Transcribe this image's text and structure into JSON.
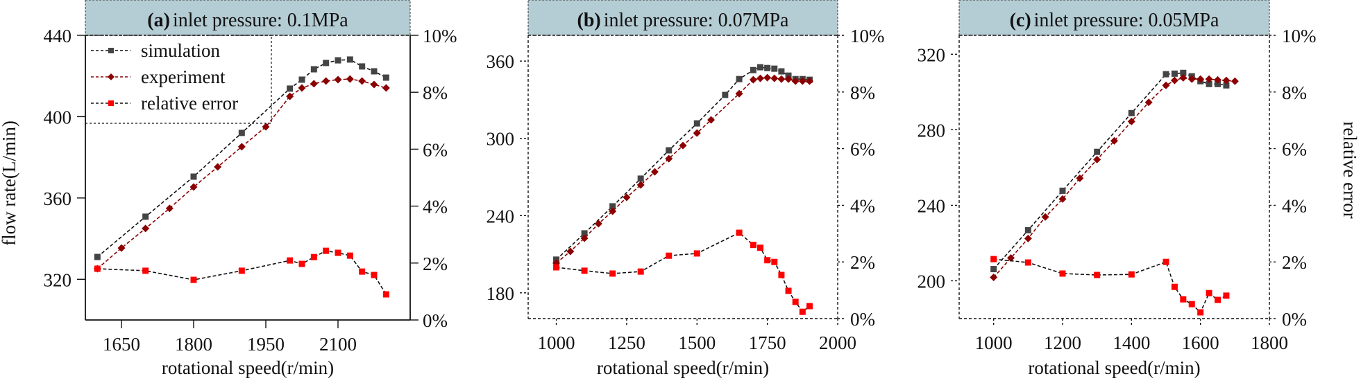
{
  "chart_data": [
    {
      "type": "line",
      "panel_label": "(a)",
      "title": "inlet pressure: 0.1MPa",
      "xlabel": "rotational speed(r/min)",
      "ylabel": "flow rate(L/min)",
      "y2label": "",
      "xlim": [
        1575,
        2250
      ],
      "ylim": [
        300,
        440
      ],
      "y2lim": [
        0,
        10
      ],
      "xticks": [
        1650,
        1800,
        1950,
        2100
      ],
      "yticks": [
        320,
        360,
        400,
        440
      ],
      "y2ticks": [
        "0%",
        "2%",
        "4%",
        "6%",
        "8%",
        "10%"
      ],
      "left_axis_style": "solid",
      "show_legend": true,
      "legend_position": "top-left",
      "series": [
        {
          "name": "simulation",
          "axis": "left",
          "marker": "square",
          "color": "#444444",
          "line_color": "#111111",
          "x": [
            1600,
            1700,
            1800,
            1900,
            2000,
            2025,
            2050,
            2075,
            2100,
            2125,
            2150,
            2175,
            2200
          ],
          "values": [
            331.0,
            350.8,
            370.5,
            392.0,
            413.8,
            418.2,
            423.3,
            426.4,
            427.7,
            428.1,
            424.7,
            422.3,
            419.2
          ]
        },
        {
          "name": "experiment",
          "axis": "left",
          "marker": "diamond",
          "color": "#8b0000",
          "line_color": "#8b0000",
          "x": [
            1600,
            1650,
            1700,
            1750,
            1800,
            1850,
            1900,
            1950,
            2000,
            2025,
            2050,
            2075,
            2100,
            2125,
            2150,
            2175,
            2200
          ],
          "values": [
            325.2,
            335.4,
            345.0,
            354.9,
            365.4,
            375.3,
            385.2,
            395.0,
            410.0,
            414.1,
            416.2,
            417.5,
            418.2,
            418.5,
            417.5,
            415.8,
            414.1
          ]
        },
        {
          "name": "relative error",
          "axis": "right",
          "marker": "square",
          "color": "#ff0000",
          "line_color": "#111111",
          "x": [
            1600,
            1700,
            1800,
            1900,
            2000,
            2025,
            2050,
            2075,
            2100,
            2125,
            2150,
            2175,
            2200
          ],
          "values": [
            1.8,
            1.73,
            1.41,
            1.73,
            2.09,
            1.97,
            2.21,
            2.43,
            2.36,
            2.26,
            1.7,
            1.58,
            0.9
          ]
        }
      ]
    },
    {
      "type": "line",
      "panel_label": "(b)",
      "title": "inlet pressure: 0.07MPa",
      "xlabel": "rotational speed(r/min)",
      "ylabel": "",
      "y2label": "",
      "xlim": [
        900,
        2000
      ],
      "ylim": [
        160,
        380
      ],
      "y2lim": [
        0,
        10
      ],
      "xticks": [
        1000,
        1250,
        1500,
        1750,
        2000
      ],
      "yticks": [
        180,
        240,
        300,
        360
      ],
      "y2ticks": [
        "0%",
        "2%",
        "4%",
        "6%",
        "8%",
        "10%"
      ],
      "left_axis_style": "dashed",
      "show_legend": false,
      "series": [
        {
          "name": "simulation",
          "axis": "left",
          "marker": "square",
          "color": "#444444",
          "line_color": "#111111",
          "x": [
            1000,
            1100,
            1200,
            1300,
            1400,
            1500,
            1600,
            1650,
            1700,
            1725,
            1750,
            1775,
            1800,
            1825,
            1850,
            1875,
            1900
          ],
          "values": [
            205.8,
            226.2,
            247.2,
            268.7,
            290.7,
            311.6,
            333.7,
            346.0,
            353.0,
            355.2,
            354.6,
            354.1,
            352.0,
            348.7,
            346.0,
            346.0,
            345.5
          ]
        },
        {
          "name": "experiment",
          "axis": "left",
          "marker": "diamond",
          "color": "#8b0000",
          "line_color": "#8b0000",
          "x": [
            1000,
            1050,
            1100,
            1150,
            1200,
            1250,
            1300,
            1350,
            1400,
            1450,
            1500,
            1550,
            1650,
            1700,
            1725,
            1750,
            1775,
            1800,
            1825,
            1850,
            1875,
            1900
          ],
          "values": [
            203.1,
            212.2,
            222.4,
            233.7,
            243.4,
            254.1,
            263.8,
            274.0,
            284.2,
            294.4,
            304.1,
            314.3,
            334.7,
            345.5,
            346.6,
            347.1,
            346.6,
            346.0,
            346.0,
            344.4,
            344.4,
            344.4
          ]
        },
        {
          "name": "relative error",
          "axis": "right",
          "marker": "square",
          "color": "#ff0000",
          "line_color": "#111111",
          "x": [
            1000,
            1100,
            1200,
            1300,
            1400,
            1500,
            1650,
            1700,
            1725,
            1750,
            1775,
            1800,
            1825,
            1850,
            1875,
            1900
          ],
          "values": [
            1.81,
            1.69,
            1.59,
            1.66,
            2.22,
            2.3,
            3.03,
            2.6,
            2.5,
            2.06,
            2.0,
            1.54,
            0.98,
            0.59,
            0.24,
            0.44
          ]
        }
      ]
    },
    {
      "type": "line",
      "panel_label": "(c)",
      "title": "inlet pressure: 0.05MPa",
      "xlabel": "rotational speed(r/min)",
      "ylabel": "",
      "y2label": "relative error",
      "xlim": [
        900,
        1800
      ],
      "ylim": [
        180,
        330
      ],
      "y2lim": [
        0,
        10
      ],
      "xticks": [
        1000,
        1200,
        1400,
        1600,
        1800
      ],
      "yticks": [
        200,
        240,
        280,
        320
      ],
      "y2ticks": [
        "0%",
        "2%",
        "4%",
        "6%",
        "8%",
        "10%"
      ],
      "left_axis_style": "dashed",
      "show_legend": false,
      "series": [
        {
          "name": "simulation",
          "axis": "left",
          "marker": "square",
          "color": "#444444",
          "line_color": "#111111",
          "x": [
            1000,
            1100,
            1200,
            1300,
            1400,
            1500,
            1525,
            1550,
            1575,
            1600,
            1625,
            1650,
            1675
          ],
          "values": [
            206.2,
            226.8,
            247.7,
            268.3,
            288.8,
            309.4,
            309.7,
            310.1,
            308.3,
            305.7,
            304.2,
            304.2,
            303.5
          ]
        },
        {
          "name": "experiment",
          "axis": "left",
          "marker": "diamond",
          "color": "#8b0000",
          "line_color": "#8b0000",
          "x": [
            1000,
            1050,
            1100,
            1150,
            1200,
            1250,
            1300,
            1350,
            1400,
            1450,
            1500,
            1525,
            1550,
            1575,
            1600,
            1625,
            1650,
            1675,
            1700
          ],
          "values": [
            201.8,
            212.1,
            222.4,
            233.8,
            243.3,
            254.3,
            264.2,
            274.1,
            284.4,
            294.5,
            303.5,
            306.1,
            307.5,
            306.8,
            306.8,
            306.8,
            306.4,
            306.1,
            305.7
          ]
        },
        {
          "name": "relative error",
          "axis": "right",
          "marker": "square",
          "color": "#ff0000",
          "line_color": "#111111",
          "x": [
            1000,
            1100,
            1200,
            1300,
            1400,
            1500,
            1525,
            1550,
            1575,
            1600,
            1625,
            1650,
            1675
          ],
          "values": [
            2.1,
            1.98,
            1.59,
            1.54,
            1.56,
            2.0,
            1.12,
            0.68,
            0.51,
            0.22,
            0.9,
            0.66,
            0.81
          ]
        }
      ]
    }
  ],
  "legend": {
    "entries": [
      "simulation",
      "experiment",
      "relative error"
    ]
  },
  "colors": {
    "title_bar": "#b4ccd3",
    "simulation": "#444444",
    "experiment": "#8b0000",
    "relative_error": "#ff0000"
  }
}
